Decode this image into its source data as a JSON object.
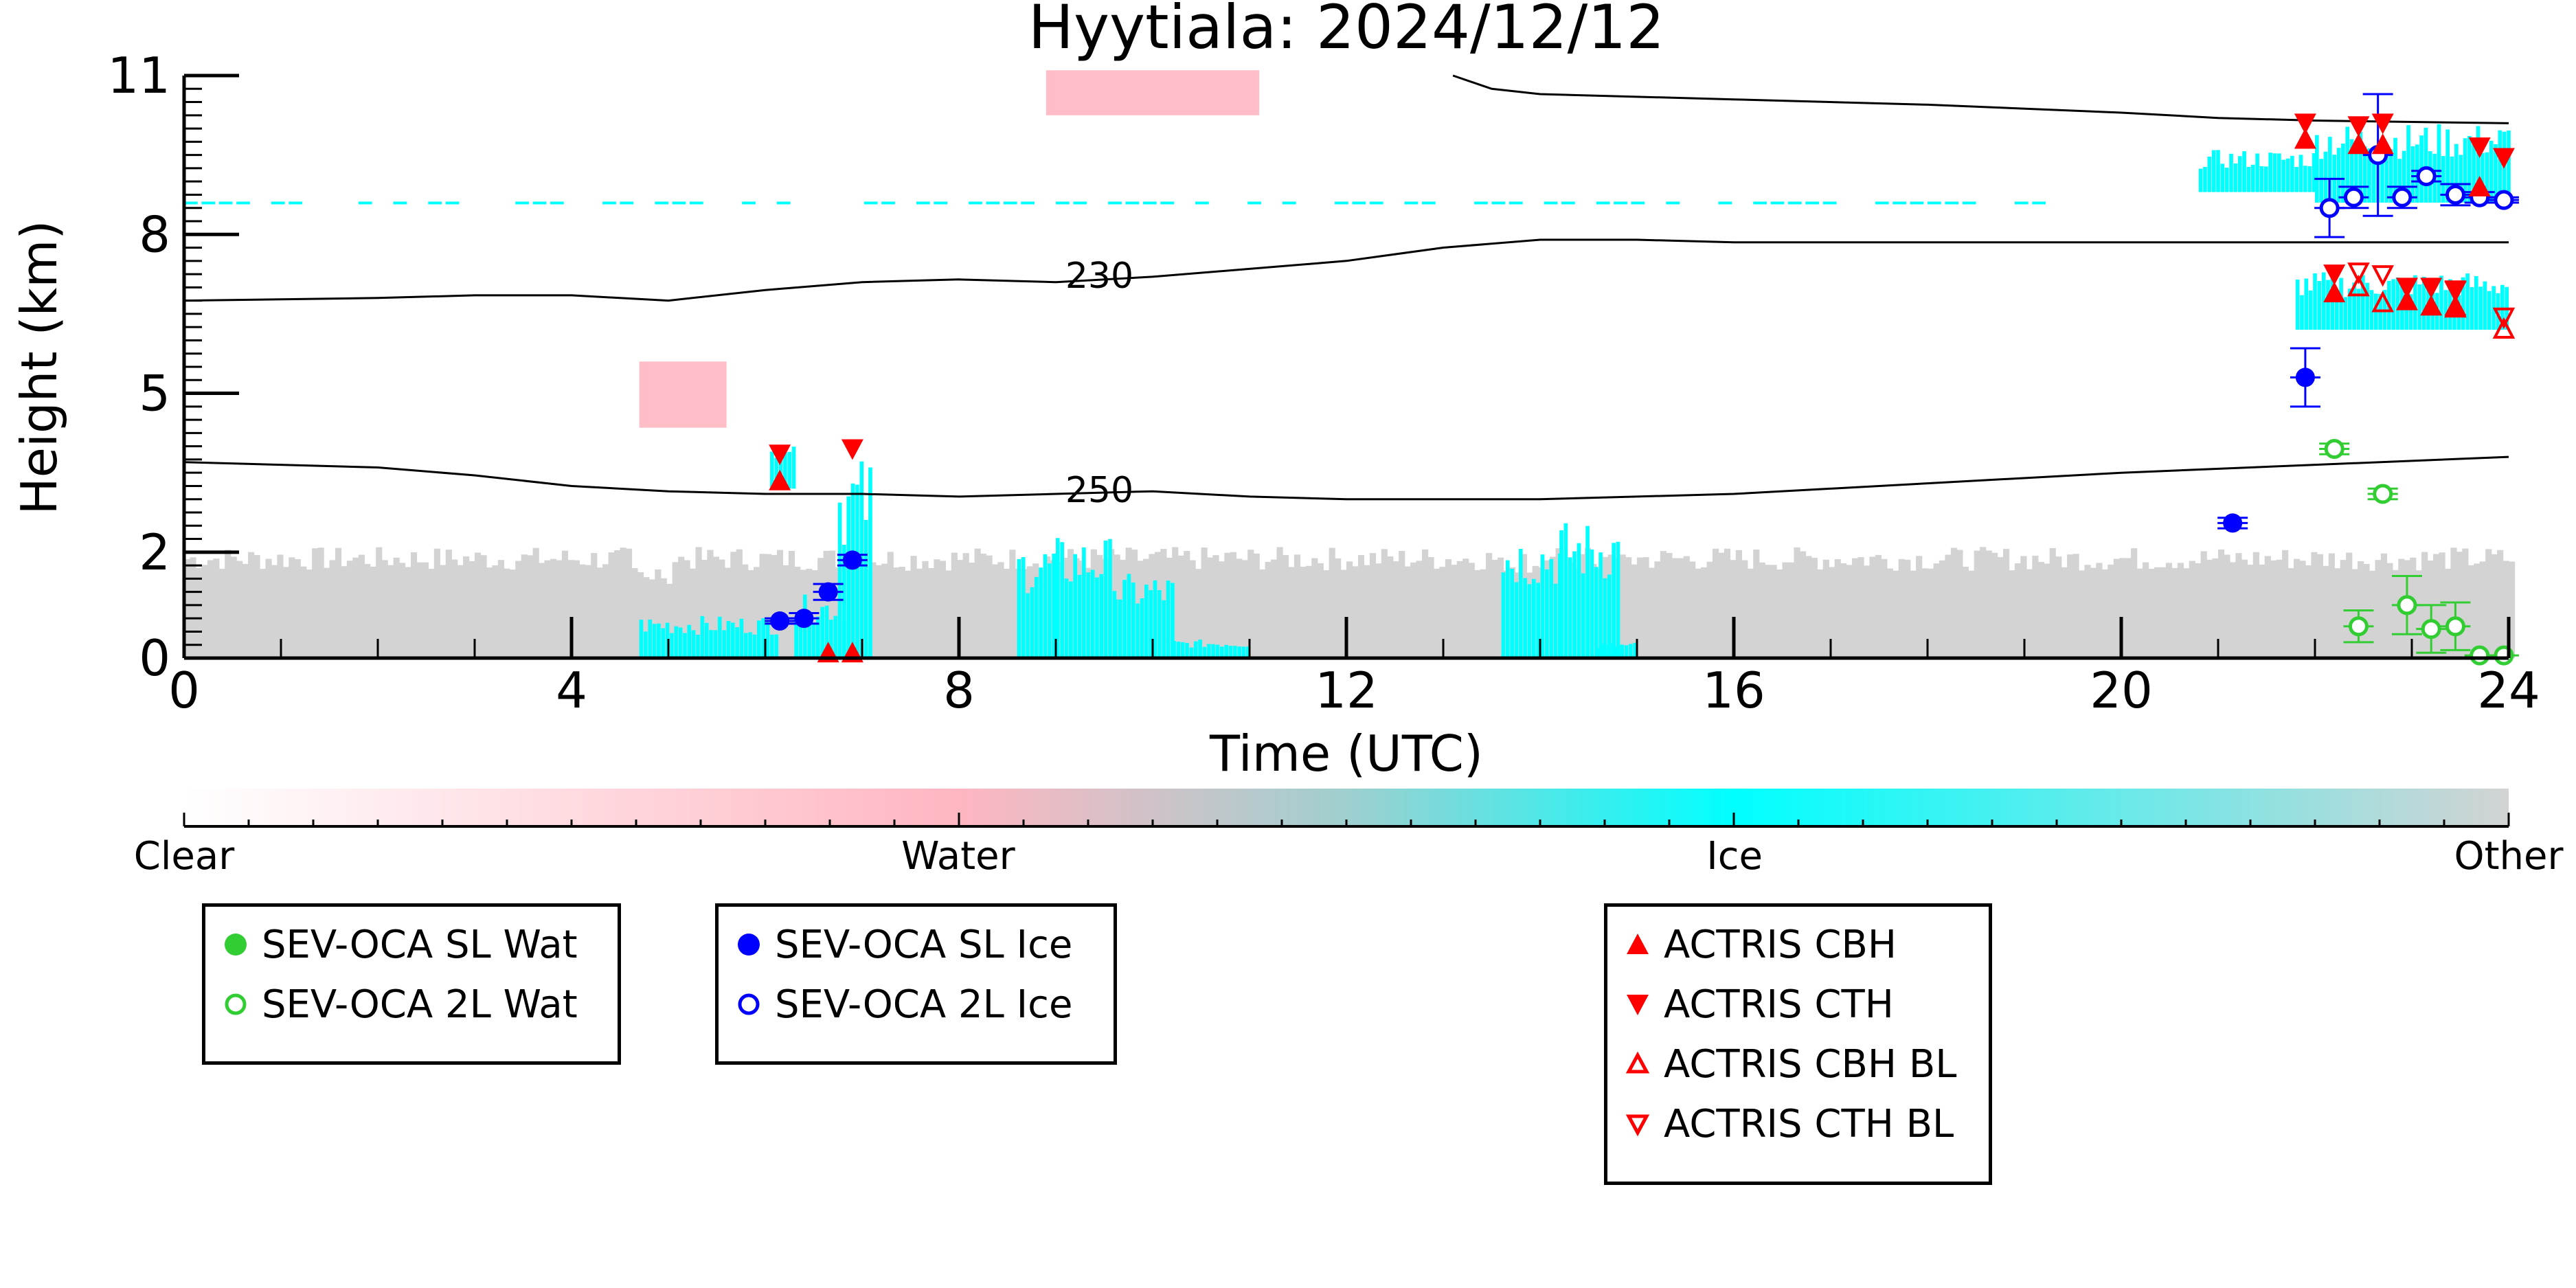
{
  "chart_data": {
    "type": "scatter",
    "title": "Hyytiala: 2024/12/12",
    "xlabel": "Time (UTC)",
    "ylabel": "Height (km)",
    "xlim": [
      0,
      24
    ],
    "ylim": [
      0,
      11
    ],
    "x_ticks": [
      "0",
      "4",
      "8",
      "12",
      "16",
      "20",
      "24"
    ],
    "x_tick_values": [
      0,
      4,
      8,
      12,
      16,
      20,
      24
    ],
    "y_ticks": [
      "0",
      "2",
      "5",
      "8",
      "11"
    ],
    "y_tick_values": [
      0,
      2,
      5,
      8,
      11
    ],
    "grid": false,
    "background": "cloud phase mask (Clear / Water / Ice / Other)",
    "colorbar": {
      "labels": [
        "Clear",
        "Water",
        "Ice",
        "Other"
      ],
      "colors": [
        "#ffffff",
        "#ffb6c1",
        "#00ffff",
        "#d3d3d3"
      ]
    },
    "contours": [
      {
        "label": "230",
        "x": [
          0,
          2,
          3,
          4,
          5,
          6,
          7,
          8,
          9,
          10,
          11,
          12,
          13,
          14,
          15,
          16,
          18,
          20,
          22,
          24
        ],
        "y": [
          6.75,
          6.8,
          6.85,
          6.85,
          6.75,
          6.95,
          7.1,
          7.15,
          7.1,
          7.2,
          7.35,
          7.5,
          7.75,
          7.9,
          7.9,
          7.85,
          7.85,
          7.85,
          7.85,
          7.85
        ]
      },
      {
        "label": "250",
        "x": [
          0,
          2,
          3,
          4,
          5,
          6,
          7,
          8,
          9,
          10,
          11,
          12,
          13,
          14,
          15,
          16,
          18,
          20,
          22,
          24
        ],
        "y": [
          3.7,
          3.6,
          3.45,
          3.25,
          3.15,
          3.1,
          3.1,
          3.05,
          3.1,
          3.15,
          3.05,
          3.0,
          3.0,
          3.0,
          3.05,
          3.1,
          3.3,
          3.5,
          3.65,
          3.8
        ]
      },
      {
        "label": "",
        "x": [
          13.1,
          13.5,
          14,
          16,
          18,
          20,
          21,
          22,
          24
        ],
        "y": [
          11.0,
          10.75,
          10.65,
          10.55,
          10.45,
          10.3,
          10.2,
          10.15,
          10.1
        ]
      }
    ],
    "series": [
      {
        "name": "SEV-OCA SL Wat",
        "color": "#32cd32",
        "marker": "filled-circle",
        "points": []
      },
      {
        "name": "SEV-OCA 2L Wat",
        "color": "#32cd32",
        "marker": "open-circle",
        "points": [
          [
            22.2,
            3.95,
            0.1
          ],
          [
            22.7,
            3.1,
            0.1
          ],
          [
            22.45,
            0.6,
            0.3
          ],
          [
            22.95,
            1.0,
            0.55
          ],
          [
            23.2,
            0.55,
            0.45
          ],
          [
            23.45,
            0.6,
            0.45
          ],
          [
            23.7,
            0.05,
            0
          ],
          [
            23.95,
            0.05,
            0
          ]
        ]
      },
      {
        "name": "SEV-OCA SL Ice",
        "color": "#0000ff",
        "marker": "filled-circle",
        "points": [
          [
            6.15,
            0.7,
            0.05
          ],
          [
            6.4,
            0.75,
            0.1
          ],
          [
            6.65,
            1.25,
            0.15
          ],
          [
            6.9,
            1.85,
            0.1
          ],
          [
            21.15,
            2.55,
            0.1
          ],
          [
            21.9,
            5.3,
            0.55
          ]
        ]
      },
      {
        "name": "SEV-OCA 2L Ice",
        "color": "#0000ff",
        "marker": "open-circle",
        "points": [
          [
            22.15,
            8.5,
            0.55
          ],
          [
            22.4,
            8.7,
            0.2
          ],
          [
            22.65,
            9.5,
            1.15
          ],
          [
            22.9,
            8.7,
            0.2
          ],
          [
            23.15,
            9.1,
            0.1
          ],
          [
            23.45,
            8.75,
            0.2
          ],
          [
            23.7,
            8.7,
            0.1
          ],
          [
            23.95,
            8.65,
            0.05
          ]
        ]
      },
      {
        "name": "ACTRIS CBH",
        "color": "#ff0000",
        "marker": "filled-triangle-up",
        "points": [
          [
            6.15,
            3.35
          ],
          [
            6.65,
            0.1
          ],
          [
            6.9,
            0.1
          ],
          [
            21.9,
            9.8
          ],
          [
            22.2,
            6.9
          ],
          [
            22.45,
            9.7
          ],
          [
            22.7,
            9.7
          ],
          [
            22.95,
            6.75
          ],
          [
            23.2,
            6.65
          ],
          [
            23.45,
            6.65
          ],
          [
            23.7,
            8.9
          ]
        ]
      },
      {
        "name": "ACTRIS CTH",
        "color": "#ff0000",
        "marker": "filled-triangle-down",
        "points": [
          [
            6.15,
            3.85
          ],
          [
            6.9,
            3.95
          ],
          [
            21.9,
            10.1
          ],
          [
            22.2,
            7.25
          ],
          [
            22.45,
            10.05
          ],
          [
            22.7,
            10.1
          ],
          [
            22.95,
            7.0
          ],
          [
            23.2,
            7.0
          ],
          [
            23.45,
            6.95
          ],
          [
            23.7,
            9.65
          ],
          [
            23.95,
            9.45
          ]
        ]
      },
      {
        "name": "ACTRIS CBH BL",
        "color": "#ff0000",
        "marker": "open-triangle-up",
        "points": [
          [
            22.45,
            7.0
          ],
          [
            22.7,
            6.7
          ],
          [
            23.45,
            6.6
          ],
          [
            23.95,
            6.2
          ]
        ]
      },
      {
        "name": "ACTRIS CTH BL",
        "color": "#ff0000",
        "marker": "open-triangle-down",
        "points": [
          [
            22.45,
            7.3
          ],
          [
            22.7,
            7.25
          ],
          [
            23.45,
            6.95
          ],
          [
            23.95,
            6.45
          ]
        ]
      }
    ],
    "legend_groups": [
      [
        "SEV-OCA SL Wat",
        "SEV-OCA 2L Wat"
      ],
      [
        "SEV-OCA SL Ice",
        "SEV-OCA 2L Ice"
      ],
      [
        "ACTRIS CBH",
        "ACTRIS CTH",
        "ACTRIS CBH BL",
        "ACTRIS CTH BL"
      ]
    ]
  }
}
